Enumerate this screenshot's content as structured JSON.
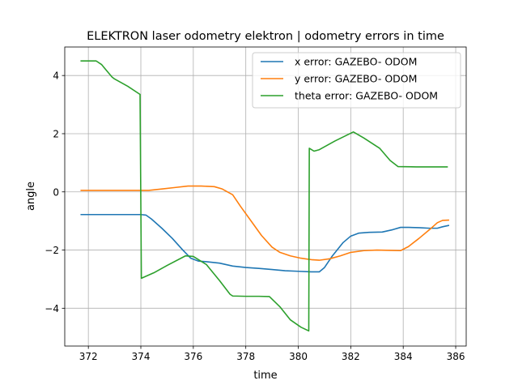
{
  "chart_data": {
    "type": "line",
    "title": "ELEKTRON laser odometry elektron | odometry errors in time",
    "xlabel": "time",
    "ylabel": "angle",
    "xlim": [
      371.1,
      386.4
    ],
    "ylim": [
      -5.3,
      4.98
    ],
    "xticks": [
      372,
      374,
      376,
      378,
      380,
      382,
      384,
      386
    ],
    "yticks": [
      -4,
      -2,
      0,
      2,
      4
    ],
    "xtick_labels": [
      "372",
      "374",
      "376",
      "378",
      "380",
      "382",
      "384",
      "386"
    ],
    "ytick_labels": [
      "−4",
      "−2",
      "0",
      "2",
      "4"
    ],
    "grid": true,
    "legend_position": "top-right",
    "series": [
      {
        "name": "x error: GAZEBO- ODOM",
        "color": "#1f77b4",
        "points": [
          [
            371.7,
            -0.78
          ],
          [
            372.5,
            -0.78
          ],
          [
            373.0,
            -0.78
          ],
          [
            373.5,
            -0.78
          ],
          [
            374.0,
            -0.78
          ],
          [
            374.2,
            -0.8
          ],
          [
            374.4,
            -0.93
          ],
          [
            374.8,
            -1.25
          ],
          [
            375.2,
            -1.6
          ],
          [
            375.6,
            -2.0
          ],
          [
            375.9,
            -2.28
          ],
          [
            376.2,
            -2.38
          ],
          [
            376.5,
            -2.4
          ],
          [
            377.0,
            -2.45
          ],
          [
            377.5,
            -2.55
          ],
          [
            378.0,
            -2.6
          ],
          [
            378.5,
            -2.63
          ],
          [
            379.0,
            -2.67
          ],
          [
            379.5,
            -2.71
          ],
          [
            380.0,
            -2.73
          ],
          [
            380.5,
            -2.75
          ],
          [
            380.8,
            -2.75
          ],
          [
            381.0,
            -2.6
          ],
          [
            381.3,
            -2.2
          ],
          [
            381.7,
            -1.75
          ],
          [
            382.0,
            -1.52
          ],
          [
            382.3,
            -1.42
          ],
          [
            382.7,
            -1.39
          ],
          [
            383.2,
            -1.38
          ],
          [
            383.6,
            -1.3
          ],
          [
            383.9,
            -1.22
          ],
          [
            384.2,
            -1.22
          ],
          [
            384.6,
            -1.23
          ],
          [
            385.0,
            -1.25
          ],
          [
            385.3,
            -1.25
          ],
          [
            385.5,
            -1.2
          ],
          [
            385.75,
            -1.15
          ]
        ]
      },
      {
        "name": "y error: GAZEBO- ODOM",
        "color": "#ff7f0e",
        "points": [
          [
            371.7,
            0.05
          ],
          [
            372.5,
            0.05
          ],
          [
            373.5,
            0.05
          ],
          [
            374.3,
            0.05
          ],
          [
            374.8,
            0.1
          ],
          [
            375.3,
            0.15
          ],
          [
            375.8,
            0.2
          ],
          [
            376.3,
            0.2
          ],
          [
            376.8,
            0.18
          ],
          [
            377.1,
            0.1
          ],
          [
            377.5,
            -0.1
          ],
          [
            377.8,
            -0.5
          ],
          [
            378.2,
            -1.0
          ],
          [
            378.6,
            -1.5
          ],
          [
            379.0,
            -1.9
          ],
          [
            379.3,
            -2.08
          ],
          [
            379.7,
            -2.2
          ],
          [
            380.1,
            -2.28
          ],
          [
            380.5,
            -2.33
          ],
          [
            380.8,
            -2.35
          ],
          [
            381.2,
            -2.3
          ],
          [
            381.6,
            -2.2
          ],
          [
            382.0,
            -2.08
          ],
          [
            382.5,
            -2.02
          ],
          [
            383.0,
            -2.0
          ],
          [
            383.5,
            -2.01
          ],
          [
            383.9,
            -2.02
          ],
          [
            384.2,
            -1.88
          ],
          [
            384.6,
            -1.6
          ],
          [
            385.0,
            -1.3
          ],
          [
            385.3,
            -1.06
          ],
          [
            385.5,
            -0.98
          ],
          [
            385.75,
            -0.97
          ]
        ]
      },
      {
        "name": "theta error: GAZEBO- ODOM",
        "color": "#2ca02c",
        "points": [
          [
            371.7,
            4.5
          ],
          [
            372.3,
            4.5
          ],
          [
            372.5,
            4.38
          ],
          [
            372.9,
            3.95
          ],
          [
            373.0,
            3.88
          ],
          [
            373.5,
            3.63
          ],
          [
            373.97,
            3.35
          ],
          [
            374.02,
            -2.97
          ],
          [
            374.5,
            -2.78
          ],
          [
            375.0,
            -2.53
          ],
          [
            375.7,
            -2.2
          ],
          [
            376.0,
            -2.22
          ],
          [
            376.5,
            -2.5
          ],
          [
            377.0,
            -3.05
          ],
          [
            377.4,
            -3.52
          ],
          [
            377.5,
            -3.58
          ],
          [
            378.0,
            -3.59
          ],
          [
            378.5,
            -3.59
          ],
          [
            378.9,
            -3.6
          ],
          [
            379.3,
            -3.95
          ],
          [
            379.7,
            -4.4
          ],
          [
            380.1,
            -4.65
          ],
          [
            380.4,
            -4.78
          ],
          [
            380.42,
            1.5
          ],
          [
            380.6,
            1.4
          ],
          [
            380.8,
            1.45
          ],
          [
            381.4,
            1.75
          ],
          [
            382.1,
            2.06
          ],
          [
            382.5,
            1.85
          ],
          [
            383.1,
            1.5
          ],
          [
            383.5,
            1.08
          ],
          [
            383.8,
            0.87
          ],
          [
            384.5,
            0.86
          ],
          [
            385.0,
            0.86
          ],
          [
            385.5,
            0.86
          ],
          [
            385.7,
            0.86
          ]
        ]
      }
    ]
  }
}
